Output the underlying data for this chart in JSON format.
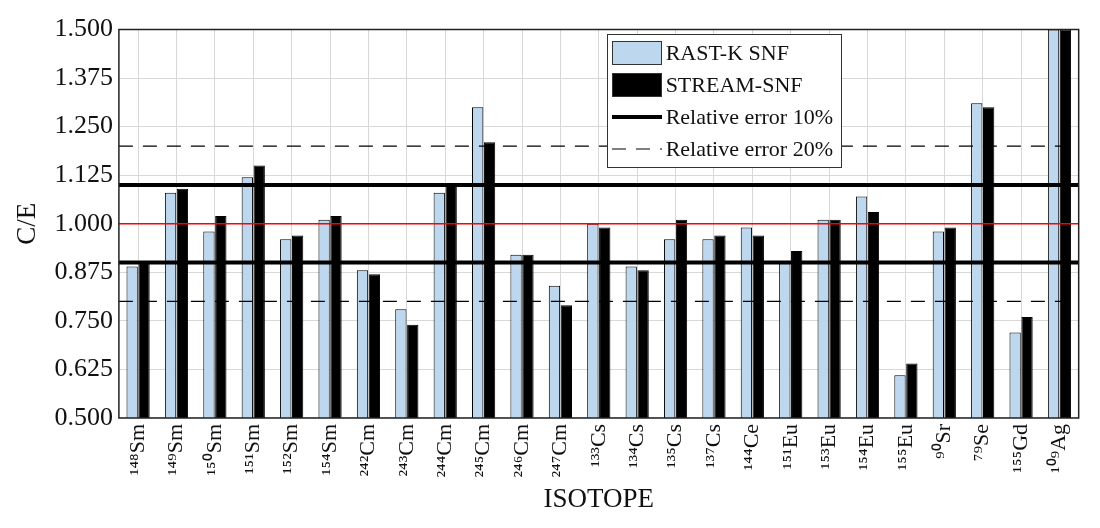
{
  "chart_data": {
    "type": "bar",
    "xlabel": "ISOTOPE",
    "ylabel": "C/E",
    "categories": [
      "¹⁴⁸Sm",
      "¹⁴⁹Sm",
      "¹⁵⁰Sm",
      "¹⁵¹Sm",
      "¹⁵²Sm",
      "¹⁵⁴Sm",
      "²⁴²Cm",
      "²⁴³Cm",
      "²⁴⁴Cm",
      "²⁴⁵Cm",
      "²⁴⁶Cm",
      "²⁴⁷Cm",
      "¹³³Cs",
      "¹³⁴Cs",
      "¹³⁵Cs",
      "¹³⁷Cs",
      "¹⁴⁴Ce",
      "¹⁵¹Eu",
      "¹⁵³Eu",
      "¹⁵⁴Eu",
      "¹⁵⁵Eu",
      "⁹⁰Sr",
      "⁷⁹Se",
      "¹⁵⁵Gd",
      "¹⁰⁹Ag"
    ],
    "series": [
      {
        "name": "RAST-K SNF",
        "color": "#bdd7ee",
        "values": [
          0.89,
          1.08,
          0.98,
          1.12,
          0.96,
          1.01,
          0.88,
          0.78,
          1.08,
          1.3,
          0.92,
          0.84,
          1.0,
          0.89,
          0.96,
          0.96,
          0.99,
          0.9,
          1.01,
          1.07,
          0.61,
          0.98,
          1.31,
          0.72,
          1.5
        ]
      },
      {
        "name": "STREAM-SNF",
        "color": "#000000",
        "values": [
          0.9,
          1.09,
          1.02,
          1.15,
          0.97,
          1.02,
          0.87,
          0.74,
          1.1,
          1.21,
          0.92,
          0.79,
          0.99,
          0.88,
          1.01,
          0.97,
          0.97,
          0.93,
          1.01,
          1.03,
          0.64,
          0.99,
          1.3,
          0.76,
          1.5
        ]
      }
    ],
    "ylim": [
      0.5,
      1.5
    ],
    "yticks": [
      {
        "value": 0.5,
        "label": "0.500"
      },
      {
        "value": 0.625,
        "label": "0.625"
      },
      {
        "value": 0.75,
        "label": "0.750"
      },
      {
        "value": 0.875,
        "label": "0.875"
      },
      {
        "value": 1,
        "label": "1.000"
      },
      {
        "value": 1.125,
        "label": "1.125"
      },
      {
        "value": 1.25,
        "label": "1.250"
      },
      {
        "value": 1.375,
        "label": "1.375"
      },
      {
        "value": 1.5,
        "label": "1.500"
      }
    ],
    "ref_lines": [
      {
        "axis": "y",
        "value": 1,
        "color": "#ff0000",
        "line_style": "solid"
      },
      {
        "axis": "y",
        "value": 1.1,
        "label": "Relative error 10%",
        "color": "#000000",
        "line_style": "solid"
      },
      {
        "axis": "y",
        "value": 0.9,
        "color": "#000000",
        "line_style": "solid"
      },
      {
        "axis": "y",
        "value": 1.2,
        "label": "Relative error 20%",
        "color": "#000000",
        "line_style": "dashed"
      },
      {
        "axis": "y",
        "value": 0.8,
        "color": "#000000",
        "line_style": "dashed"
      }
    ],
    "grid": true,
    "legend": "top right"
  }
}
